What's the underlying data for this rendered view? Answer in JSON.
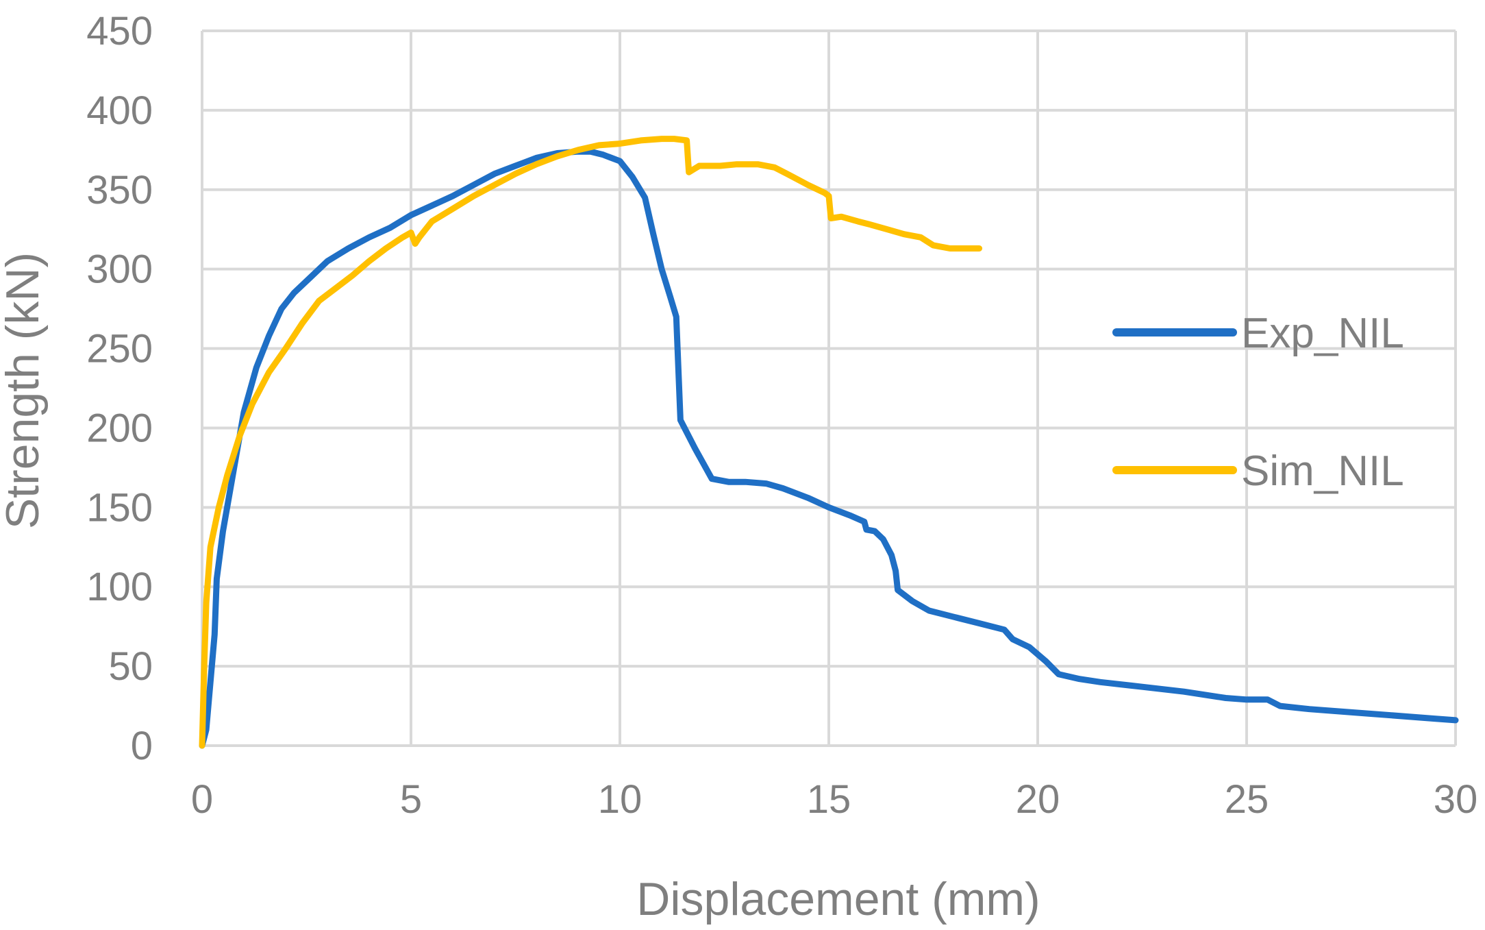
{
  "chart_data": {
    "type": "line",
    "title": "",
    "xlabel": "Displacement (mm)",
    "ylabel": "Strength (kN)",
    "xlim": [
      0,
      30
    ],
    "ylim": [
      0,
      450
    ],
    "xticks": [
      0,
      5,
      10,
      15,
      20,
      25,
      30
    ],
    "yticks": [
      0,
      50,
      100,
      150,
      200,
      250,
      300,
      350,
      400,
      450
    ],
    "grid": true,
    "legend_position": "right",
    "series": [
      {
        "name": "Exp_NIL",
        "color": "#1f6fc5",
        "points": [
          [
            0.0,
            0
          ],
          [
            0.1,
            10
          ],
          [
            0.2,
            40
          ],
          [
            0.3,
            70
          ],
          [
            0.35,
            105
          ],
          [
            0.5,
            135
          ],
          [
            0.7,
            165
          ],
          [
            1.0,
            210
          ],
          [
            1.3,
            238
          ],
          [
            1.6,
            258
          ],
          [
            1.9,
            275
          ],
          [
            2.2,
            285
          ],
          [
            2.6,
            295
          ],
          [
            3.0,
            305
          ],
          [
            3.5,
            313
          ],
          [
            4.0,
            320
          ],
          [
            4.5,
            326
          ],
          [
            5.0,
            334
          ],
          [
            5.5,
            340
          ],
          [
            6.0,
            346
          ],
          [
            6.5,
            353
          ],
          [
            7.0,
            360
          ],
          [
            7.5,
            365
          ],
          [
            8.0,
            370
          ],
          [
            8.5,
            373
          ],
          [
            9.0,
            374
          ],
          [
            9.3,
            374
          ],
          [
            9.6,
            372
          ],
          [
            10.0,
            368
          ],
          [
            10.3,
            358
          ],
          [
            10.6,
            345
          ],
          [
            10.8,
            322
          ],
          [
            11.0,
            300
          ],
          [
            11.2,
            283
          ],
          [
            11.35,
            270
          ],
          [
            11.45,
            205
          ],
          [
            11.8,
            187
          ],
          [
            12.2,
            168
          ],
          [
            12.6,
            166
          ],
          [
            13.0,
            166
          ],
          [
            13.5,
            165
          ],
          [
            13.9,
            162
          ],
          [
            14.5,
            156
          ],
          [
            15.0,
            150
          ],
          [
            15.5,
            145
          ],
          [
            15.85,
            141
          ],
          [
            15.9,
            136
          ],
          [
            16.1,
            135
          ],
          [
            16.3,
            130
          ],
          [
            16.5,
            120
          ],
          [
            16.6,
            110
          ],
          [
            16.65,
            98
          ],
          [
            17.0,
            91
          ],
          [
            17.4,
            85
          ],
          [
            18.0,
            81
          ],
          [
            18.6,
            77
          ],
          [
            19.2,
            73
          ],
          [
            19.4,
            67
          ],
          [
            19.8,
            62
          ],
          [
            20.2,
            53
          ],
          [
            20.5,
            45
          ],
          [
            21.0,
            42
          ],
          [
            21.5,
            40
          ],
          [
            22.5,
            37
          ],
          [
            23.5,
            34
          ],
          [
            24.5,
            30
          ],
          [
            25.0,
            29
          ],
          [
            25.5,
            29
          ],
          [
            25.8,
            25
          ],
          [
            26.5,
            23
          ],
          [
            28.0,
            20
          ],
          [
            29.5,
            17
          ],
          [
            30.0,
            16
          ]
        ]
      },
      {
        "name": "Sim_NIL",
        "color": "#ffc000",
        "points": [
          [
            0.0,
            0
          ],
          [
            0.05,
            50
          ],
          [
            0.1,
            90
          ],
          [
            0.2,
            125
          ],
          [
            0.4,
            150
          ],
          [
            0.6,
            170
          ],
          [
            0.9,
            195
          ],
          [
            1.2,
            215
          ],
          [
            1.6,
            235
          ],
          [
            2.0,
            250
          ],
          [
            2.4,
            266
          ],
          [
            2.8,
            280
          ],
          [
            3.2,
            288
          ],
          [
            3.6,
            296
          ],
          [
            4.0,
            305
          ],
          [
            4.4,
            313
          ],
          [
            4.8,
            320
          ],
          [
            5.0,
            323
          ],
          [
            5.1,
            316
          ],
          [
            5.2,
            320
          ],
          [
            5.5,
            330
          ],
          [
            6.0,
            338
          ],
          [
            6.5,
            346
          ],
          [
            7.0,
            353
          ],
          [
            7.5,
            360
          ],
          [
            8.0,
            366
          ],
          [
            8.5,
            371
          ],
          [
            9.0,
            375
          ],
          [
            9.5,
            378
          ],
          [
            10.0,
            379
          ],
          [
            10.5,
            381
          ],
          [
            11.0,
            382
          ],
          [
            11.3,
            382
          ],
          [
            11.6,
            381
          ],
          [
            11.65,
            361
          ],
          [
            11.9,
            365
          ],
          [
            12.4,
            365
          ],
          [
            12.8,
            366
          ],
          [
            13.3,
            366
          ],
          [
            13.7,
            364
          ],
          [
            14.0,
            360
          ],
          [
            14.5,
            353
          ],
          [
            14.9,
            348
          ],
          [
            15.0,
            346
          ],
          [
            15.05,
            332
          ],
          [
            15.3,
            333
          ],
          [
            15.7,
            330
          ],
          [
            16.0,
            328
          ],
          [
            16.4,
            325
          ],
          [
            16.8,
            322
          ],
          [
            17.2,
            320
          ],
          [
            17.5,
            315
          ],
          [
            17.9,
            313
          ],
          [
            18.3,
            313
          ],
          [
            18.6,
            313
          ]
        ]
      }
    ]
  }
}
